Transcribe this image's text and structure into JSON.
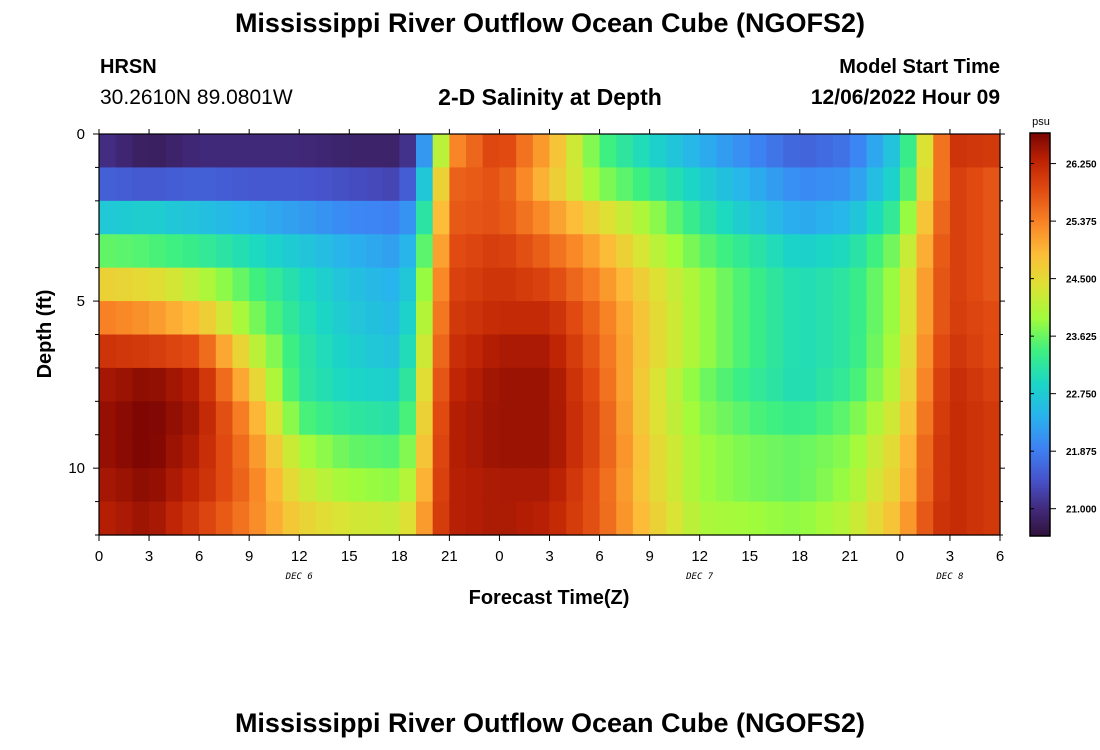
{
  "header": {
    "title": "Mississippi River Outflow Ocean Cube (NGOFS2)",
    "station": "HRSN",
    "coords": "30.2610N  89.0801W",
    "subtitle": "2-D Salinity at Depth",
    "start_label": "Model Start Time",
    "start_value": "12/06/2022 Hour 09"
  },
  "footer": {
    "title": "Mississippi River Outflow Ocean Cube (NGOFS2)"
  },
  "chart_data": {
    "type": "heatmap",
    "title": "2-D Salinity at Depth",
    "xlabel": "Forecast Time(Z)",
    "ylabel": "Depth (ft)",
    "xlim": [
      0,
      54
    ],
    "ylim": [
      0,
      12
    ],
    "x_tick_values": [
      0,
      3,
      6,
      9,
      12,
      15,
      18,
      21,
      24,
      27,
      30,
      33,
      36,
      39,
      42,
      45,
      48,
      51,
      54
    ],
    "x_tick_labels": [
      "0",
      "3",
      "6",
      "9",
      "12",
      "15",
      "18",
      "21",
      "0",
      "3",
      "6",
      "9",
      "12",
      "15",
      "18",
      "21",
      "0",
      "3",
      "6"
    ],
    "day_labels": [
      {
        "x": 12,
        "label": "DEC 6"
      },
      {
        "x": 36,
        "label": "DEC 7"
      },
      {
        "x": 51,
        "label": "DEC 8"
      }
    ],
    "y_tick_values": [
      0,
      5,
      10
    ],
    "y_tick_labels": [
      "0",
      "5",
      "10"
    ],
    "depth_rows": [
      0.5,
      1.5,
      2.5,
      3.5,
      4.5,
      5.5,
      6.5,
      7.5,
      8.5,
      9.5,
      10.5,
      11.5
    ],
    "salinity_key_times": [
      0,
      3,
      6,
      9,
      12,
      15,
      18,
      19,
      20,
      21,
      24,
      27,
      30,
      33,
      36,
      39,
      42,
      45,
      48,
      50,
      51,
      54
    ],
    "salinity_rows": [
      [
        21.1,
        20.8,
        21.0,
        21.0,
        21.0,
        20.9,
        20.9,
        21.3,
        23.0,
        25.2,
        26.0,
        25.0,
        23.5,
        22.9,
        22.4,
        22.0,
        21.6,
        21.8,
        22.8,
        24.9,
        26.1,
        26.0
      ],
      [
        21.6,
        21.5,
        21.6,
        21.5,
        21.5,
        21.4,
        21.3,
        21.8,
        23.6,
        25.6,
        25.8,
        24.8,
        23.8,
        23.3,
        22.8,
        22.4,
        22.0,
        22.1,
        23.0,
        25.0,
        26.0,
        25.7
      ],
      [
        22.7,
        22.8,
        22.6,
        22.4,
        22.2,
        22.0,
        21.9,
        22.3,
        24.0,
        25.7,
        25.8,
        25.2,
        24.5,
        23.9,
        23.2,
        22.7,
        22.3,
        22.5,
        23.4,
        25.2,
        26.0,
        25.7
      ],
      [
        23.6,
        23.5,
        23.3,
        23.0,
        22.7,
        22.4,
        22.2,
        22.7,
        24.4,
        25.8,
        26.0,
        25.6,
        25.0,
        24.2,
        23.6,
        23.2,
        22.8,
        23.0,
        23.8,
        25.4,
        26.0,
        25.7
      ],
      [
        24.6,
        24.5,
        24.1,
        23.5,
        23.0,
        22.6,
        22.4,
        23.0,
        24.7,
        25.9,
        26.1,
        25.9,
        25.3,
        24.5,
        23.9,
        23.4,
        23.0,
        23.2,
        24.0,
        25.5,
        26.0,
        25.7
      ],
      [
        25.4,
        25.2,
        24.8,
        23.8,
        23.1,
        22.7,
        22.5,
        23.2,
        24.9,
        26.0,
        26.2,
        26.2,
        25.5,
        24.6,
        23.9,
        23.4,
        23.0,
        23.2,
        24.0,
        25.5,
        26.0,
        25.8
      ],
      [
        26.1,
        26.0,
        25.8,
        24.3,
        23.2,
        22.8,
        22.6,
        23.4,
        25.1,
        26.1,
        26.4,
        26.4,
        25.6,
        24.6,
        23.9,
        23.4,
        23.0,
        23.2,
        24.1,
        25.6,
        26.1,
        25.8
      ],
      [
        26.4,
        26.6,
        26.3,
        24.8,
        23.2,
        22.9,
        22.8,
        23.6,
        25.3,
        26.2,
        26.5,
        26.5,
        25.7,
        24.5,
        23.7,
        23.3,
        23.0,
        23.3,
        24.2,
        25.7,
        26.2,
        25.9
      ],
      [
        26.5,
        26.7,
        26.4,
        25.2,
        23.5,
        23.2,
        23.1,
        23.8,
        25.4,
        26.3,
        26.5,
        26.5,
        25.8,
        24.5,
        23.8,
        23.5,
        23.3,
        23.6,
        24.4,
        25.8,
        26.2,
        26.0
      ],
      [
        26.5,
        26.7,
        26.3,
        25.4,
        24.0,
        23.6,
        23.5,
        24.0,
        25.5,
        26.3,
        26.5,
        26.5,
        25.8,
        24.6,
        23.9,
        23.7,
        23.6,
        23.8,
        24.6,
        25.9,
        26.2,
        26.0
      ],
      [
        26.4,
        26.6,
        26.2,
        25.5,
        24.3,
        23.9,
        23.8,
        24.3,
        25.6,
        26.3,
        26.4,
        26.4,
        25.7,
        24.6,
        23.9,
        23.7,
        23.6,
        23.9,
        24.7,
        25.9,
        26.2,
        26.0
      ],
      [
        26.3,
        26.5,
        26.0,
        25.4,
        24.6,
        24.3,
        24.2,
        24.6,
        25.7,
        26.3,
        26.4,
        26.3,
        25.7,
        24.7,
        24.0,
        23.9,
        23.8,
        24.1,
        24.9,
        26.0,
        26.2,
        26.0
      ]
    ],
    "colorbar": {
      "unit": "psu",
      "min": 20.6,
      "max": 26.7,
      "tick_values": [
        21.0,
        21.875,
        22.75,
        23.625,
        24.5,
        25.375,
        26.25
      ],
      "tick_labels": [
        "21.000",
        "21.875",
        "22.750",
        "23.625",
        "24.500",
        "25.375",
        "26.250"
      ]
    }
  }
}
